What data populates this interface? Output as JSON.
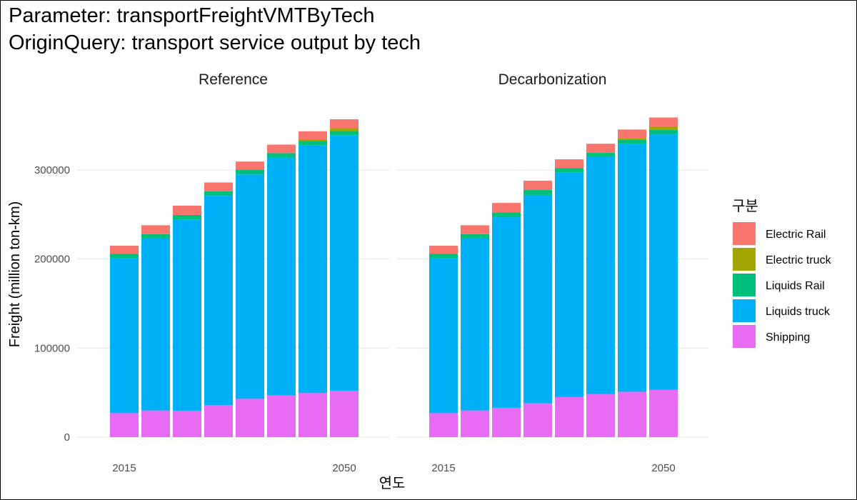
{
  "title_line1": "Parameter: transportFreightVMTByTech",
  "title_line2": "OriginQuery: transport service output by tech",
  "chart_data": {
    "type": "bar",
    "stacked": true,
    "facets": [
      "Reference",
      "Decarbonization"
    ],
    "xlabel": "연도",
    "ylabel": "Freight (million ton-km)",
    "x_tick_labels": [
      "2015",
      "2050"
    ],
    "y_ticks": [
      0,
      100000,
      200000,
      300000
    ],
    "y_tick_labels": [
      "0",
      "100000",
      "200000",
      "300000"
    ],
    "ylim": [
      0,
      380000
    ],
    "years": [
      2015,
      2020,
      2025,
      2030,
      2035,
      2040,
      2045,
      2050
    ],
    "grid": true,
    "legend": {
      "title": "구분",
      "position": "right",
      "entries": [
        {
          "name": "Electric Rail",
          "color": "#F8766D"
        },
        {
          "name": "Electric truck",
          "color": "#A3A500"
        },
        {
          "name": "Liquids Rail",
          "color": "#00BF7D"
        },
        {
          "name": "Liquids truck",
          "color": "#00B0F6"
        },
        {
          "name": "Shipping",
          "color": "#E76BF3"
        }
      ]
    },
    "stack_order_bottom_to_top": [
      "Shipping",
      "Liquids truck",
      "Liquids Rail",
      "Electric truck",
      "Electric Rail"
    ],
    "panels": [
      {
        "facet": "Reference",
        "series": [
          {
            "name": "Shipping",
            "values": [
              27000,
              30000,
              29500,
              36000,
              43000,
              47000,
              49500,
              52000
            ]
          },
          {
            "name": "Liquids truck",
            "values": [
              174000,
              193000,
              215000,
              235000,
              252000,
              267000,
              278000,
              287000
            ]
          },
          {
            "name": "Liquids Rail",
            "values": [
              5000,
              5000,
              5000,
              5000,
              5000,
              5000,
              5000,
              5000
            ]
          },
          {
            "name": "Electric truck",
            "values": [
              0,
              0,
              0,
              0,
              0,
              0,
              2000,
              3000
            ]
          },
          {
            "name": "Electric Rail",
            "values": [
              9000,
              10000,
              10500,
              10000,
              9500,
              9500,
              9000,
              10000
            ]
          }
        ]
      },
      {
        "facet": "Decarbonization",
        "series": [
          {
            "name": "Shipping",
            "values": [
              27000,
              30000,
              33000,
              38000,
              45000,
              48500,
              51000,
              53000
            ]
          },
          {
            "name": "Liquids truck",
            "values": [
              174000,
              193000,
              214000,
              234000,
              252000,
              266000,
              278000,
              287000
            ]
          },
          {
            "name": "Liquids Rail",
            "values": [
              5000,
              5000,
              5500,
              5500,
              5000,
              5000,
              5000,
              5000
            ]
          },
          {
            "name": "Electric truck",
            "values": [
              0,
              0,
              0,
              0,
              0,
              0,
              2000,
              4000
            ]
          },
          {
            "name": "Electric Rail",
            "values": [
              9000,
              10000,
              10500,
              10500,
              10000,
              10000,
              9500,
              10000
            ]
          }
        ]
      }
    ]
  }
}
